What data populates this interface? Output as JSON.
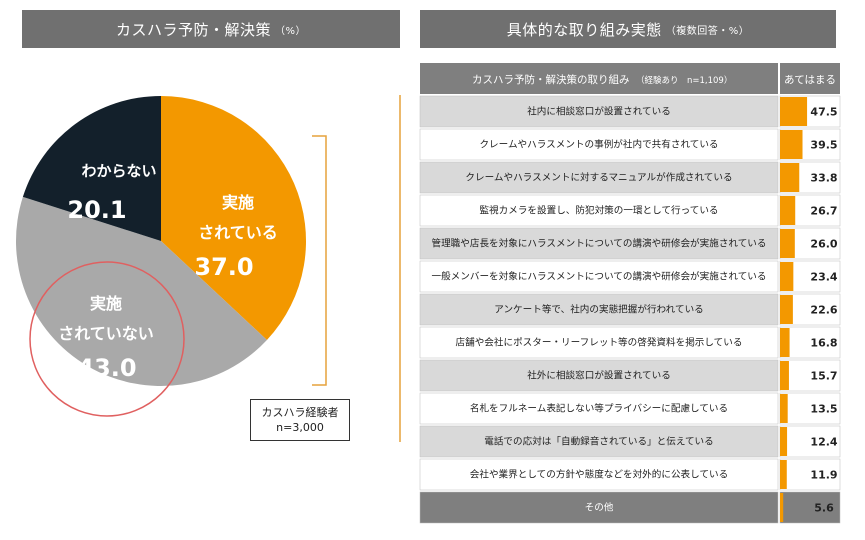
{
  "left_panel": {
    "title": "カスハラ予防・解決策",
    "title_unit": "（%）",
    "note_line1": "カスハラ経験者",
    "note_line2": "n=3,000"
  },
  "right_panel": {
    "title": "具体的な取り組み実態",
    "title_unit": "（複数回答・%）",
    "table_header_label": "カスハラ予防・解決策の取り組み",
    "table_header_sub": "（経験あり　n=1,109）",
    "table_header_value": "あてはまる"
  },
  "colors": {
    "orange": "#F39800",
    "gray": "#A9A9A9",
    "navy": "#13202B",
    "header_gray": "#7F7F7F",
    "row_gray": "#D9D9D9",
    "circle_red": "#E06060",
    "bracket": "#E6A23C"
  },
  "chart_data": [
    {
      "type": "pie",
      "title": "カスハラ予防・解決策",
      "unit": "%",
      "slices": [
        {
          "label_lines": [
            "実施",
            "されている"
          ],
          "value": 37.0,
          "value_label": "37.0",
          "color": "#F39800"
        },
        {
          "label_lines": [
            "実施",
            "されていない"
          ],
          "value": 43.0,
          "value_label": "43.0",
          "color": "#A9A9A9"
        },
        {
          "label_lines": [
            "わからない"
          ],
          "value": 20.1,
          "value_label": "20.1",
          "color": "#13202B"
        }
      ]
    },
    {
      "type": "bar",
      "title": "具体的な取り組み実態",
      "unit": "%",
      "xlim": [
        0,
        100
      ],
      "categories": [
        "社内に相談窓口が設置されている",
        "クレームやハラスメントの事例が社内で共有されている",
        "クレームやハラスメントに対するマニュアルが作成されている",
        "監視カメラを設置し、防犯対策の一環として行っている",
        "管理職や店長を対象にハラスメントについての講演や研修会が実施されている",
        "一般メンバーを対象にハラスメントについての講演や研修会が実施されている",
        "アンケート等で、社内の実態把握が行われている",
        "店舗や会社にポスター・リーフレット等の啓発資料を掲示している",
        "社外に相談窓口が設置されている",
        "名札をフルネーム表記しない等プライバシーに配慮している",
        "電話での応対は「自動録音されている」と伝えている",
        "会社や業界としての方針や態度などを対外的に公表している",
        "その他"
      ],
      "values": [
        47.5,
        39.5,
        33.8,
        26.7,
        26.0,
        23.4,
        22.6,
        16.8,
        15.7,
        13.5,
        12.4,
        11.9,
        5.6
      ],
      "value_labels": [
        "47.5",
        "39.5",
        "33.8",
        "26.7",
        "26.0",
        "23.4",
        "22.6",
        "16.8",
        "15.7",
        "13.5",
        "12.4",
        "11.9",
        "5.6"
      ]
    }
  ]
}
